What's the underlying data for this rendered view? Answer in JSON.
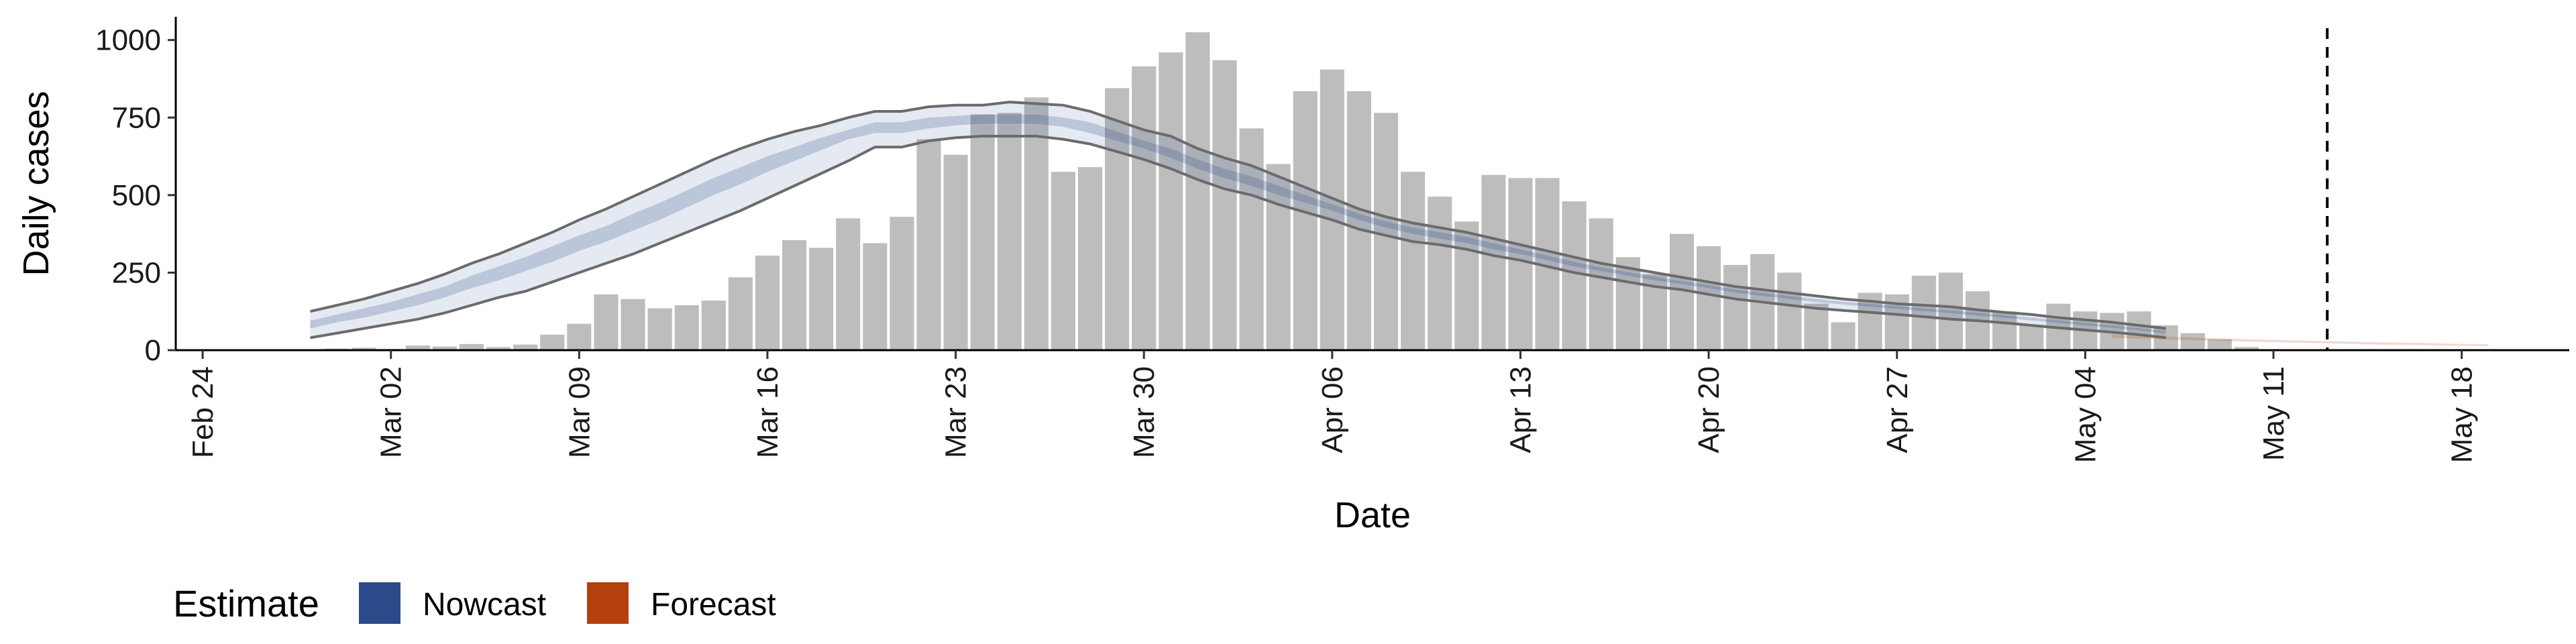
{
  "chart_data": {
    "type": "bar",
    "xlabel": "Date",
    "ylabel": "Daily cases",
    "ylim": [
      0,
      1075
    ],
    "xlim": [
      "2020-02-23",
      "2020-05-22"
    ],
    "grid": false,
    "y_ticks": [
      {
        "value": 0,
        "label": "0"
      },
      {
        "value": 250,
        "label": "250"
      },
      {
        "value": 500,
        "label": "500"
      },
      {
        "value": 750,
        "label": "750"
      },
      {
        "value": 1000,
        "label": "1000"
      }
    ],
    "x_ticks": [
      {
        "date": "2020-02-24",
        "label": "Feb 24"
      },
      {
        "date": "2020-03-02",
        "label": "Mar 02"
      },
      {
        "date": "2020-03-09",
        "label": "Mar 09"
      },
      {
        "date": "2020-03-16",
        "label": "Mar 16"
      },
      {
        "date": "2020-03-23",
        "label": "Mar 23"
      },
      {
        "date": "2020-03-30",
        "label": "Mar 30"
      },
      {
        "date": "2020-04-06",
        "label": "Apr 06"
      },
      {
        "date": "2020-04-13",
        "label": "Apr 13"
      },
      {
        "date": "2020-04-20",
        "label": "Apr 20"
      },
      {
        "date": "2020-04-27",
        "label": "Apr 27"
      },
      {
        "date": "2020-05-04",
        "label": "May 04"
      },
      {
        "date": "2020-05-11",
        "label": "May 11"
      },
      {
        "date": "2020-05-18",
        "label": "May 18"
      }
    ],
    "bar_color": "#bdbdbd",
    "bars": {
      "start_date": "2020-02-27",
      "values": [
        2,
        0,
        5,
        8,
        4,
        15,
        12,
        20,
        10,
        18,
        50,
        85,
        180,
        165,
        135,
        145,
        160,
        235,
        305,
        355,
        330,
        425,
        345,
        430,
        680,
        630,
        760,
        765,
        815,
        575,
        590,
        845,
        915,
        960,
        1025,
        935,
        715,
        600,
        835,
        905,
        835,
        765,
        575,
        495,
        415,
        565,
        555,
        555,
        480,
        425,
        300,
        245,
        375,
        335,
        275,
        310,
        250,
        150,
        90,
        185,
        180,
        240,
        250,
        190,
        125,
        80,
        150,
        125,
        120,
        125,
        80,
        55,
        35,
        10
      ]
    },
    "vline": {
      "date": "2020-05-13",
      "style": "dashed",
      "color": "#000000"
    },
    "series": [
      {
        "name": "Nowcast",
        "color": "#2b4a8a",
        "start_date": "2020-02-28",
        "outer_lower": [
          40,
          55,
          70,
          85,
          100,
          120,
          145,
          170,
          190,
          220,
          250,
          280,
          310,
          345,
          380,
          415,
          450,
          490,
          530,
          570,
          610,
          655,
          655,
          675,
          685,
          690,
          690,
          690,
          680,
          665,
          640,
          615,
          585,
          550,
          520,
          500,
          470,
          445,
          420,
          390,
          370,
          350,
          340,
          325,
          305,
          290,
          270,
          250,
          235,
          220,
          205,
          195,
          180,
          165,
          155,
          145,
          135,
          128,
          122,
          115,
          108,
          100,
          95,
          88,
          80,
          72,
          65,
          58,
          50,
          40
        ],
        "outer_upper": [
          125,
          145,
          165,
          190,
          215,
          245,
          280,
          310,
          345,
          380,
          420,
          455,
          495,
          535,
          575,
          615,
          650,
          680,
          705,
          725,
          750,
          770,
          770,
          785,
          790,
          790,
          800,
          795,
          790,
          770,
          740,
          710,
          690,
          650,
          620,
          595,
          560,
          525,
          490,
          455,
          430,
          410,
          395,
          380,
          360,
          340,
          320,
          300,
          280,
          265,
          250,
          235,
          220,
          205,
          195,
          185,
          175,
          165,
          158,
          150,
          145,
          140,
          130,
          122,
          115,
          105,
          98,
          90,
          80,
          70
        ],
        "inner_lower": [
          70,
          90,
          105,
          125,
          145,
          170,
          200,
          225,
          255,
          285,
          320,
          350,
          385,
          420,
          460,
          500,
          535,
          575,
          610,
          645,
          680,
          700,
          700,
          715,
          725,
          730,
          730,
          730,
          720,
          700,
          675,
          650,
          620,
          585,
          555,
          530,
          500,
          475,
          450,
          420,
          395,
          375,
          360,
          345,
          325,
          310,
          290,
          270,
          255,
          240,
          225,
          213,
          200,
          185,
          175,
          165,
          155,
          147,
          140,
          133,
          126,
          119,
          112,
          104,
          96,
          88,
          80,
          72,
          64,
          54
        ],
        "inner_upper": [
          95,
          115,
          135,
          155,
          180,
          205,
          240,
          270,
          300,
          335,
          370,
          400,
          440,
          475,
          515,
          555,
          590,
          625,
          655,
          685,
          710,
          735,
          735,
          750,
          755,
          760,
          760,
          760,
          750,
          735,
          705,
          675,
          650,
          615,
          585,
          560,
          530,
          500,
          470,
          440,
          415,
          395,
          380,
          365,
          345,
          325,
          305,
          285,
          267,
          252,
          237,
          223,
          210,
          195,
          185,
          175,
          165,
          156,
          149,
          142,
          135,
          128,
          121,
          113,
          105,
          96,
          88,
          80,
          71,
          61
        ]
      },
      {
        "name": "Forecast",
        "color": "#b5400f",
        "start_date": "2020-05-05",
        "lower": [
          40,
          37,
          35,
          32,
          30,
          28,
          26,
          24,
          22,
          20,
          18,
          17,
          16,
          14,
          13
        ],
        "upper": [
          50,
          47,
          44,
          41,
          38,
          35,
          33,
          31,
          29,
          27,
          25,
          24,
          22,
          20,
          19
        ]
      }
    ],
    "legend": {
      "title": "Estimate",
      "position": "bottom-left",
      "items": [
        {
          "label": "Nowcast",
          "color": "#2b4a8a"
        },
        {
          "label": "Forecast",
          "color": "#b5400f"
        }
      ]
    }
  }
}
